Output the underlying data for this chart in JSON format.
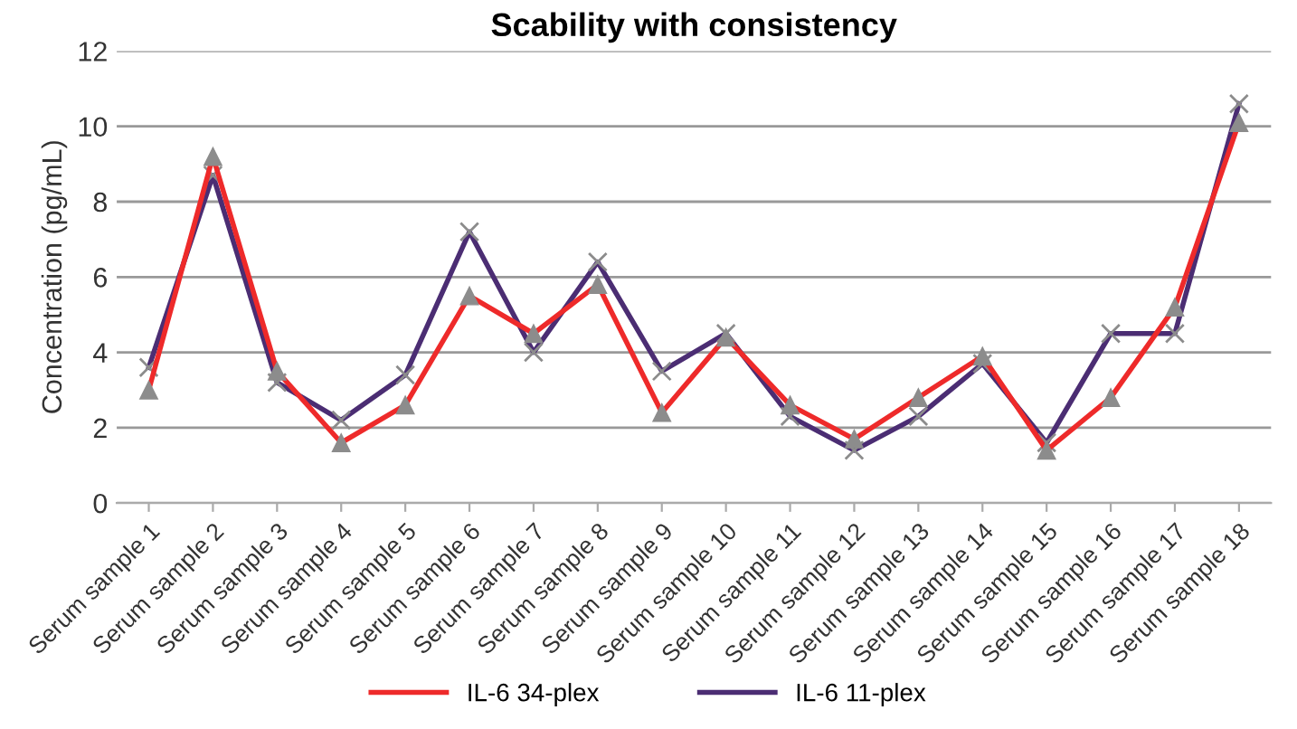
{
  "chart_data": {
    "type": "line",
    "title": "Scability with consistency",
    "ylabel": "Concentration (pg/mL)",
    "categories": [
      "Serum sample 1",
      "Serum sample 2",
      "Serum sample 3",
      "Serum sample 4",
      "Serum sample 5",
      "Serum sample 6",
      "Serum sample 7",
      "Serum sample 8",
      "Serum sample 9",
      "Serum sample 10",
      "Serum sample 11",
      "Serum sample 12",
      "Serum sample 13",
      "Serum sample 14",
      "Serum sample 15",
      "Serum sample 16",
      "Serum sample 17",
      "Serum sample 18"
    ],
    "series": [
      {
        "name": "IL-6 34-plex",
        "color": "#ee2a2a",
        "marker": "triangle",
        "values": [
          3.0,
          9.2,
          3.5,
          1.6,
          2.6,
          5.5,
          4.5,
          5.8,
          2.4,
          4.4,
          2.6,
          1.7,
          2.8,
          3.9,
          1.4,
          2.8,
          5.2,
          10.1
        ]
      },
      {
        "name": "IL-6 11-plex",
        "color": "#4b2d73",
        "marker": "cross",
        "values": [
          3.6,
          8.7,
          3.2,
          2.2,
          3.4,
          7.2,
          4.0,
          6.4,
          3.5,
          4.5,
          2.3,
          1.4,
          2.3,
          3.7,
          1.6,
          4.5,
          4.5,
          10.6
        ]
      }
    ],
    "ylim": [
      0,
      12
    ],
    "yticks": [
      0,
      2,
      4,
      6,
      8,
      10,
      12
    ],
    "grid": "y",
    "legend": "bottom",
    "line_style": "solid"
  }
}
